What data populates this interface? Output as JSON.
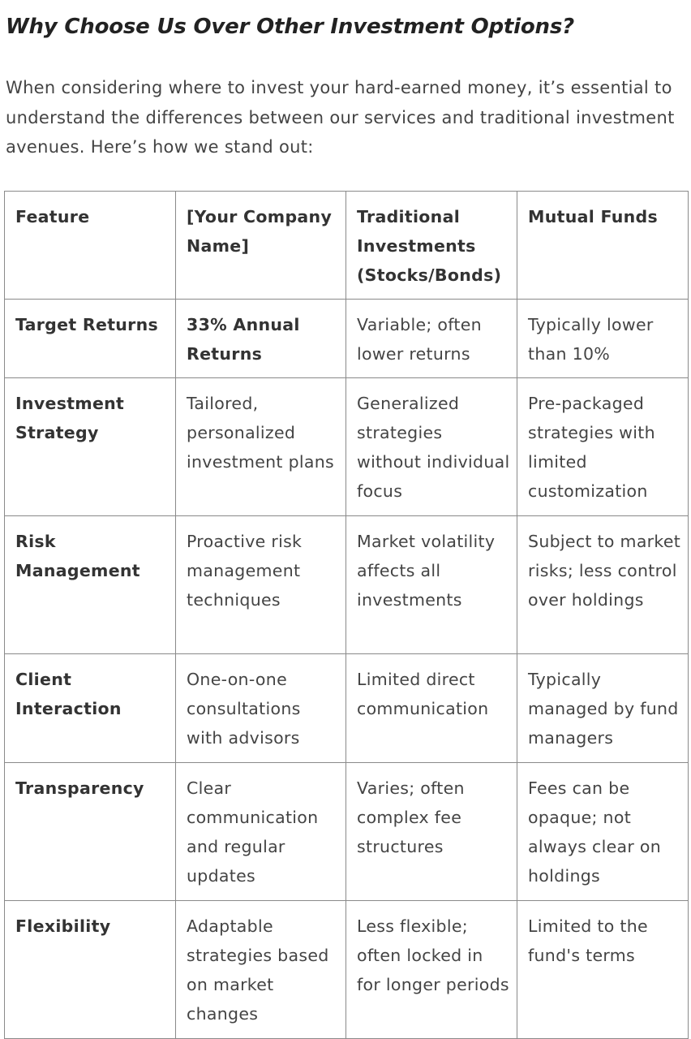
{
  "heading": "Why Choose Us Over Other Investment Options?",
  "intro": "When considering where to invest your hard-earned money, it’s essential to understand the differences between our services and traditional investment avenues. Here’s how we stand out:",
  "table": {
    "headers": [
      "Feature",
      "[Your Company Name]",
      "Traditional Investments (Stocks/Bonds)",
      "Mutual Funds"
    ],
    "rows": [
      {
        "feature": "Target Returns",
        "company": "33% Annual Returns",
        "traditional": "Variable; often lower returns",
        "mutual": "Typically lower than 10%"
      },
      {
        "feature": "Investment Strategy",
        "company": "Tailored, personalized investment plans",
        "traditional": "Generalized strategies without individual focus",
        "mutual": "Pre-packaged strategies with limited customization"
      },
      {
        "feature": "Risk Management",
        "company": "Proactive risk management techniques",
        "traditional": "Market volatility affects all investments",
        "mutual": "Subject to market risks; less control over holdings"
      },
      {
        "feature": "Client Interaction",
        "company": "One-on-one consultations with advisors",
        "traditional": "Limited direct communication",
        "mutual": "Typically managed by fund managers"
      },
      {
        "feature": "Transparency",
        "company": "Clear communication and regular updates",
        "traditional": "Varies; often complex fee structures",
        "mutual": "Fees can be opaque; not always clear on holdings"
      },
      {
        "feature": "Flexibility",
        "company": "Adaptable strategies based on market changes",
        "traditional": "Less flexible; often locked in for longer periods",
        "mutual": "Limited to the fund's terms"
      }
    ]
  }
}
